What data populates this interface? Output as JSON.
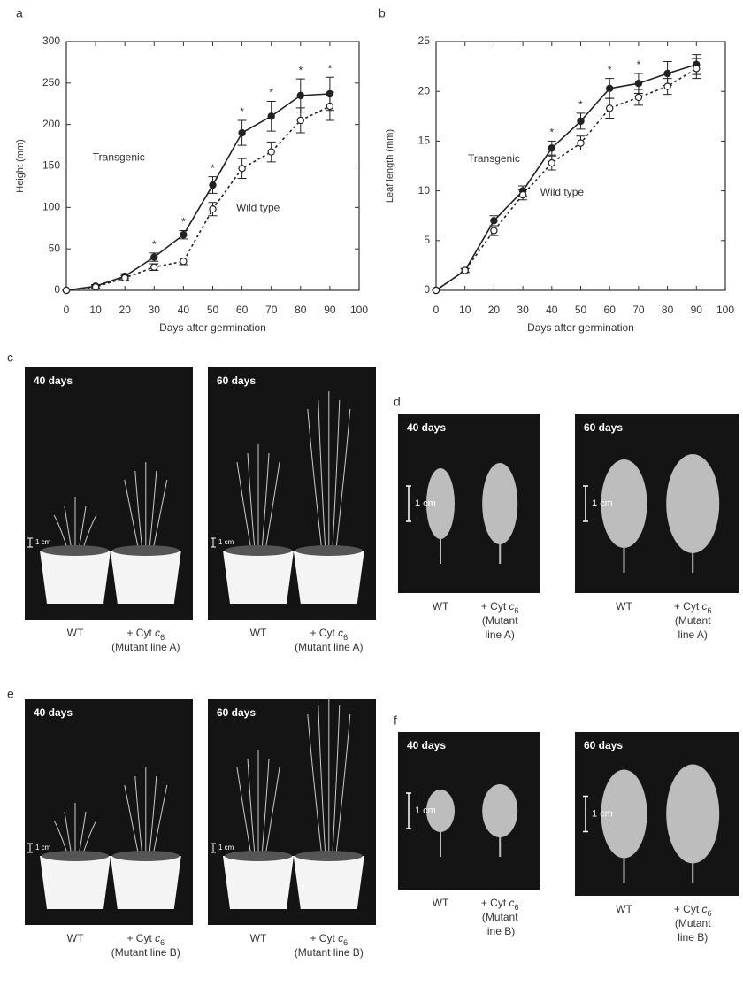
{
  "chart_data": [
    {
      "type": "line",
      "panel": "a",
      "x_label": "Days after germination",
      "y_label": "Height (mm)",
      "x": [
        0,
        10,
        20,
        30,
        40,
        50,
        60,
        70,
        80,
        90
      ],
      "series": [
        {
          "name": "Transgenic",
          "color": "#222222",
          "marker": "filled",
          "dashed": false,
          "values": [
            0,
            5,
            17,
            40,
            67,
            127,
            190,
            210,
            235,
            237
          ],
          "errors": [
            0,
            2,
            3,
            5,
            5,
            10,
            15,
            18,
            20,
            20
          ]
        },
        {
          "name": "Wild type",
          "color": "#222222",
          "marker": "open",
          "dashed": true,
          "values": [
            0,
            4,
            15,
            28,
            35,
            98,
            147,
            167,
            205,
            222
          ],
          "errors": [
            0,
            2,
            3,
            4,
            4,
            8,
            12,
            12,
            15,
            17
          ]
        }
      ],
      "annotations": [
        {
          "text": "Transgenic",
          "x": 9,
          "y": 160
        },
        {
          "text": "Wild type",
          "x": 58,
          "y": 99
        }
      ],
      "significance_marker": "*",
      "significant_x": [
        30,
        40,
        50,
        60,
        70,
        80,
        90
      ],
      "xlim": [
        0,
        100
      ],
      "xticks": [
        0,
        10,
        20,
        30,
        40,
        50,
        60,
        70,
        80,
        90,
        100
      ],
      "ylim": [
        0,
        300
      ],
      "yticks": [
        0,
        50,
        100,
        150,
        200,
        250,
        300
      ]
    },
    {
      "type": "line",
      "panel": "b",
      "x_label": "Days after germination",
      "y_label": "Leaf length (mm)",
      "x": [
        0,
        10,
        20,
        30,
        40,
        50,
        60,
        70,
        80,
        90
      ],
      "series": [
        {
          "name": "Transgenic",
          "color": "#222222",
          "marker": "filled",
          "dashed": false,
          "values": [
            0,
            2,
            7,
            10,
            14.3,
            17,
            20.3,
            20.8,
            21.8,
            22.7
          ],
          "errors": [
            0,
            0.2,
            0.5,
            0.5,
            0.7,
            0.8,
            1,
            1,
            1.2,
            1
          ]
        },
        {
          "name": "Wild type",
          "color": "#222222",
          "marker": "open",
          "dashed": true,
          "values": [
            0,
            2,
            6,
            9.6,
            12.8,
            14.8,
            18.3,
            19.4,
            20.5,
            22.3
          ],
          "errors": [
            0,
            0.2,
            0.5,
            0.5,
            0.7,
            0.7,
            1,
            0.8,
            0.8,
            1
          ]
        }
      ],
      "annotations": [
        {
          "text": "Transgenic",
          "x": 11,
          "y": 13.2
        },
        {
          "text": "Wild type",
          "x": 36,
          "y": 9.8
        }
      ],
      "significance_marker": "*",
      "significant_x": [
        40,
        50,
        60,
        70
      ],
      "xlim": [
        0,
        100
      ],
      "xticks": [
        0,
        10,
        20,
        30,
        40,
        50,
        60,
        70,
        80,
        90,
        100
      ],
      "ylim": [
        0,
        25
      ],
      "yticks": [
        0,
        5,
        10,
        15,
        20,
        25
      ]
    }
  ],
  "photo_panels": [
    {
      "label": "c",
      "kind": "plant",
      "captions": [
        "40 days",
        "60 days"
      ],
      "scale": "1 cm",
      "wt": "WT",
      "mutant": {
        "prefix": "+ Cyt",
        "italic": "c",
        "sub": "6",
        "lines": [
          "(Mutant line A)"
        ]
      }
    },
    {
      "label": "d",
      "kind": "leaf",
      "captions": [
        "40 days",
        "60 days"
      ],
      "scale": "1 cm",
      "wt": "WT",
      "mutant": {
        "prefix": "+ Cyt",
        "italic": "c",
        "sub": "6",
        "lines": [
          "(Mutant",
          "line A)"
        ]
      }
    },
    {
      "label": "e",
      "kind": "plant",
      "captions": [
        "40 days",
        "60 days"
      ],
      "scale": "1 cm",
      "wt": "WT",
      "mutant": {
        "prefix": "+ Cyt",
        "italic": "c",
        "sub": "6",
        "lines": [
          "(Mutant line B)"
        ]
      }
    },
    {
      "label": "f",
      "kind": "leaf",
      "captions": [
        "40 days",
        "60 days"
      ],
      "scale": "1 cm",
      "wt": "WT",
      "mutant": {
        "prefix": "+ Cyt",
        "italic": "c",
        "sub": "6",
        "lines": [
          "(Mutant",
          "line B)"
        ]
      }
    }
  ]
}
